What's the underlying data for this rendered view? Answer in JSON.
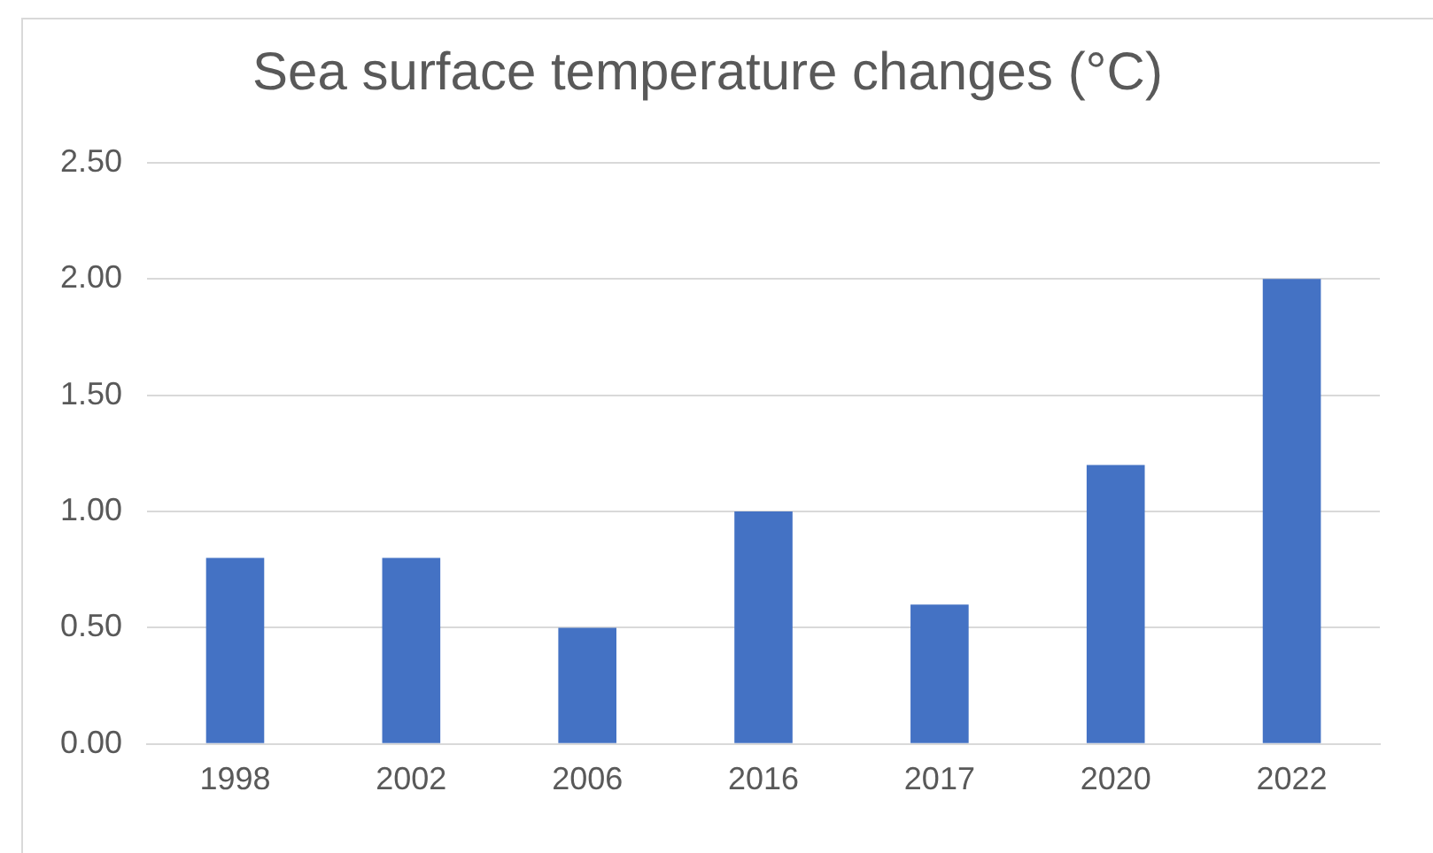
{
  "chart_data": {
    "type": "bar",
    "title": "Sea surface temperature changes (°C)",
    "categories": [
      "1998",
      "2002",
      "2006",
      "2016",
      "2017",
      "2020",
      "2022"
    ],
    "values": [
      0.8,
      0.8,
      0.5,
      1.0,
      0.6,
      1.2,
      2.0
    ],
    "color": "#4472c4",
    "ylim": [
      0,
      2.5
    ],
    "yticks": [
      {
        "value": 0,
        "label": "0.00"
      },
      {
        "value": 0.5,
        "label": "0.50"
      },
      {
        "value": 1,
        "label": "1.00"
      },
      {
        "value": 1.5,
        "label": "1.50"
      },
      {
        "value": 2,
        "label": "2.00"
      },
      {
        "value": 2.5,
        "label": "2.50"
      }
    ],
    "grid": "y",
    "legend": false
  }
}
